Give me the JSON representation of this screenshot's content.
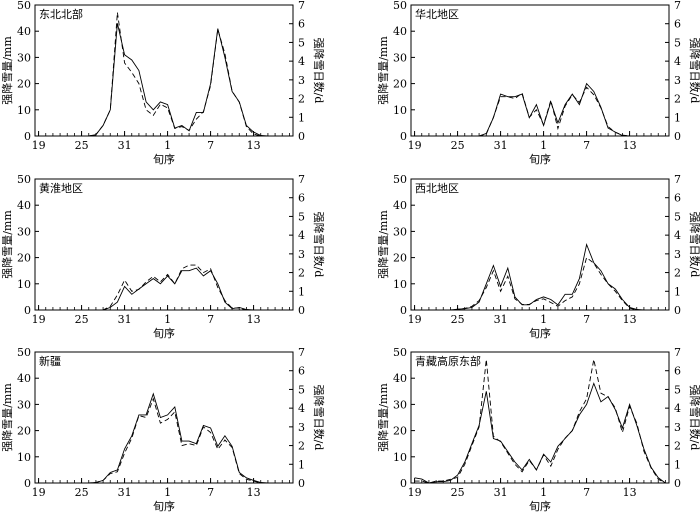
{
  "chart_data": [
    {
      "type": "line",
      "title": "东北北部",
      "xlabel": "旬序",
      "ylabel_left": "强降雪量/mm",
      "ylabel_right": "强降雪日数/d",
      "x_ticks": [
        "19",
        "25",
        "31",
        "1",
        "7",
        "13"
      ],
      "ylim_left": [
        0,
        50
      ],
      "ylim_right": [
        0,
        7
      ],
      "series": [
        {
          "values": [
            0,
            0,
            0,
            0,
            0,
            0,
            0,
            0,
            0.5,
            4,
            10,
            43,
            31,
            29,
            25,
            13,
            10,
            13,
            12,
            3,
            4,
            2,
            9,
            9,
            20,
            41,
            30,
            17,
            13,
            4,
            1.5,
            0.2,
            0,
            0,
            0,
            0
          ]
        },
        {
          "values": [
            0,
            0,
            0,
            0,
            0,
            0,
            0,
            0,
            0.07,
            0.57,
            1.4,
            6.6,
            3.9,
            3.4,
            2.8,
            1.4,
            1.1,
            1.7,
            1.5,
            0.4,
            0.5,
            0.3,
            0.9,
            1.3,
            2.7,
            5.7,
            4.4,
            2.4,
            1.8,
            0.5,
            0.1,
            0,
            0,
            0,
            0,
            0
          ]
        }
      ]
    },
    {
      "type": "line",
      "title": "华北地区",
      "xlabel": "旬序",
      "ylabel_left": "强降雪量/mm",
      "ylabel_right": "强降雪日数/d",
      "x_ticks": [
        "19",
        "25",
        "31",
        "1",
        "7",
        "13"
      ],
      "ylim_left": [
        0,
        50
      ],
      "ylim_right": [
        0,
        7
      ],
      "series": [
        {
          "values": [
            0,
            0,
            0,
            0,
            0,
            0,
            0,
            0,
            0,
            0,
            1,
            7,
            16,
            15,
            15,
            16,
            7,
            12,
            4,
            13,
            5,
            12,
            16,
            12,
            20,
            17,
            11,
            3,
            1.5,
            0.2,
            0,
            0,
            0,
            0,
            0,
            0
          ]
        },
        {
          "values": [
            0,
            0,
            0,
            0,
            0,
            0,
            0,
            0,
            0,
            0,
            0.1,
            1,
            2.1,
            2.1,
            2,
            2.3,
            1,
            1.4,
            0.6,
            1.9,
            0.4,
            1.6,
            2.2,
            1.8,
            2.6,
            2.2,
            1.5,
            0.5,
            0.2,
            0.05,
            0,
            0,
            0,
            0,
            0,
            0
          ]
        }
      ]
    },
    {
      "type": "line",
      "title": "黄淮地区",
      "xlabel": "旬序",
      "ylabel_left": "强降雪量/mm",
      "ylabel_right": "强降雪日数/d",
      "x_ticks": [
        "19",
        "25",
        "31",
        "1",
        "7",
        "13"
      ],
      "ylim_left": [
        0,
        50
      ],
      "ylim_right": [
        0,
        7
      ],
      "series": [
        {
          "values": [
            0,
            0,
            0,
            0,
            0,
            0,
            0,
            0,
            0,
            0,
            1,
            3,
            9,
            6,
            8,
            10,
            12,
            10,
            13,
            10,
            15,
            15,
            16,
            13,
            15,
            10,
            3,
            0.5,
            1,
            0.2,
            0,
            0,
            0,
            0,
            0,
            0
          ]
        },
        {
          "values": [
            0,
            0,
            0,
            0,
            0,
            0,
            0,
            0,
            0,
            0,
            0.2,
            0.8,
            1.6,
            1,
            1.1,
            1.5,
            1.8,
            1.5,
            1.9,
            1.4,
            2.2,
            2.4,
            2.4,
            2,
            2.2,
            1.2,
            0.5,
            0.1,
            0.1,
            0,
            0,
            0,
            0,
            0,
            0,
            0
          ]
        }
      ]
    },
    {
      "type": "line",
      "title": "西北地区",
      "xlabel": "旬序",
      "ylabel_left": "强降雪量/mm",
      "ylabel_right": "强降雪日数/d",
      "x_ticks": [
        "19",
        "25",
        "31",
        "1",
        "7",
        "13"
      ],
      "ylim_left": [
        0,
        50
      ],
      "ylim_right": [
        0,
        7
      ],
      "series": [
        {
          "values": [
            0,
            0,
            0,
            0,
            0,
            0,
            0.3,
            0.5,
            1,
            3,
            10,
            17,
            9,
            16,
            5,
            2,
            2,
            4,
            5,
            4,
            2,
            6,
            6,
            12,
            25,
            18,
            15,
            10,
            8,
            4,
            1,
            0.2,
            0,
            0,
            0,
            0
          ]
        },
        {
          "values": [
            0,
            0,
            0,
            0,
            0,
            0,
            0.04,
            0.08,
            0.2,
            0.5,
            1.2,
            2.1,
            1,
            1.8,
            0.6,
            0.3,
            0.3,
            0.5,
            0.6,
            0.4,
            0.2,
            0.5,
            0.7,
            1.4,
            2.8,
            2.5,
            1.9,
            1.4,
            1,
            0.5,
            0.1,
            0,
            0,
            0,
            0,
            0
          ]
        }
      ]
    },
    {
      "type": "line",
      "title": "新疆",
      "xlabel": "旬序",
      "ylabel_left": "强降雪量/mm",
      "ylabel_right": "强降雪日数/d",
      "x_ticks": [
        "19",
        "25",
        "31",
        "1",
        "7",
        "13"
      ],
      "ylim_left": [
        0,
        50
      ],
      "ylim_right": [
        0,
        7
      ],
      "series": [
        {
          "values": [
            0,
            0,
            0,
            0,
            0,
            0,
            0,
            0,
            0.2,
            1,
            4,
            5,
            13,
            18,
            26,
            26,
            34,
            25,
            26,
            29,
            16,
            16,
            15,
            22,
            21,
            14,
            18,
            14,
            4,
            2,
            1,
            0.2,
            0,
            0,
            0,
            0
          ]
        },
        {
          "values": [
            0,
            0,
            0,
            0,
            0,
            0,
            0,
            0,
            0.03,
            0.14,
            0.5,
            0.6,
            1.6,
            2.4,
            3.6,
            3.5,
            4.5,
            3.2,
            3.4,
            3.8,
            2,
            2.1,
            2,
            3,
            2.7,
            1.8,
            2.3,
            1.9,
            0.5,
            0.2,
            0.1,
            0,
            0,
            0,
            0,
            0
          ]
        }
      ]
    },
    {
      "type": "line",
      "title": "青藏高原东部",
      "xlabel": "旬序",
      "ylabel_left": "强降雪量/mm",
      "ylabel_right": "强降雪日数/d",
      "x_ticks": [
        "19",
        "25",
        "31",
        "1",
        "7",
        "13"
      ],
      "ylim_left": [
        0,
        50
      ],
      "ylim_right": [
        0,
        7
      ],
      "series": [
        {
          "values": [
            2,
            1.5,
            0,
            0.5,
            0.5,
            1,
            3,
            8,
            15,
            22,
            35,
            17,
            16,
            12,
            8,
            5,
            9,
            5,
            11,
            8,
            14,
            17,
            20,
            26,
            30,
            38,
            31,
            33,
            28,
            21,
            30,
            22,
            13,
            6,
            2,
            0
          ]
        },
        {
          "values": [
            0.1,
            0.1,
            0,
            0.1,
            0.1,
            0.2,
            0.3,
            1,
            2,
            3,
            6.6,
            2.5,
            2.2,
            1.6,
            1,
            0.6,
            1.2,
            0.7,
            1.5,
            0.9,
            1.8,
            2.4,
            2.8,
            3.8,
            4.5,
            6.6,
            4.8,
            4.6,
            4,
            2.7,
            4.1,
            3.2,
            1.7,
            0.8,
            0.2,
            0
          ]
        }
      ]
    }
  ]
}
